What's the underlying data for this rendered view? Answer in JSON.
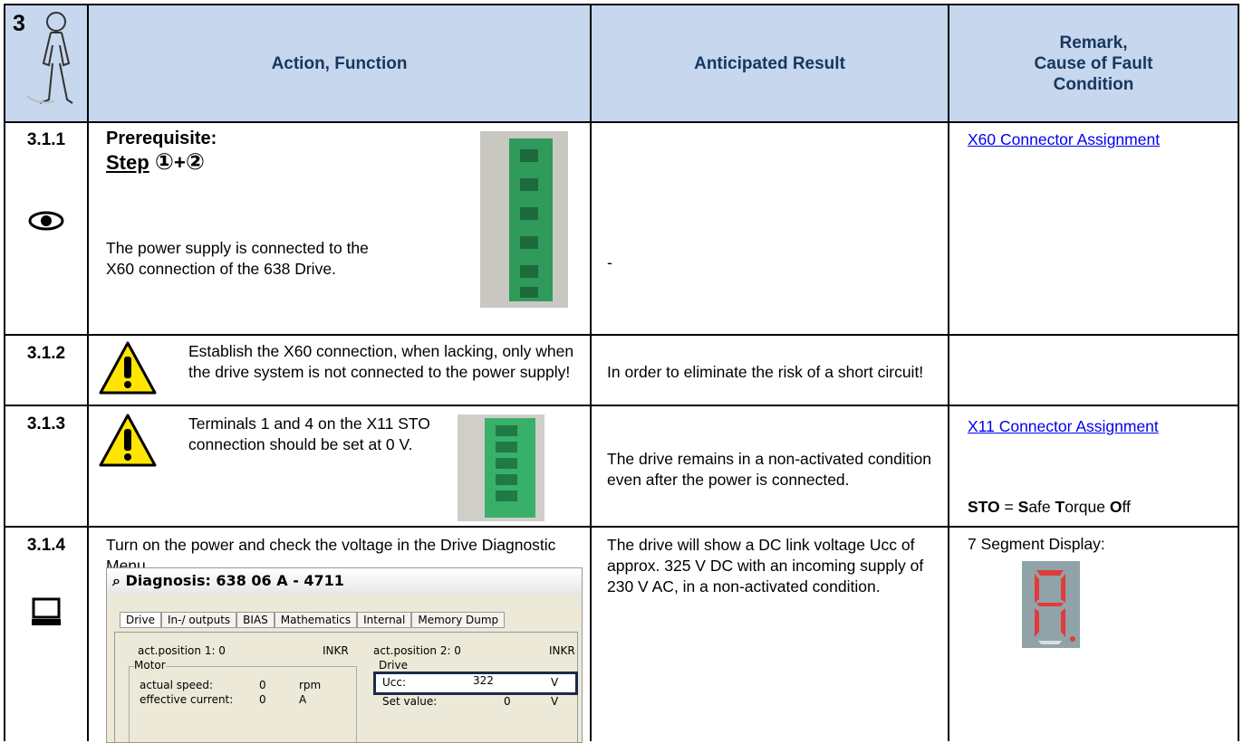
{
  "header": {
    "step": "3",
    "columns": [
      [
        "Action, Function"
      ],
      [
        "Anticipated Result"
      ],
      [
        "Remark,",
        "Cause of Fault",
        "Condition"
      ]
    ]
  },
  "rows": [
    {
      "id": "3.1.1",
      "action": {
        "heading": "Prerequisite:",
        "step_label": "Step",
        "step_first": "①",
        "step_plus": "+",
        "step_second": "②",
        "text": "The power supply is connected to the X60 connection of the 638 Drive."
      },
      "result": "-",
      "remark_link": "X60 Connector Assignment"
    },
    {
      "id": "3.1.2",
      "action": {
        "text": "Establish the X60 connection, when lacking, only when the drive system is not connected to the power supply!"
      },
      "result": "In order to eliminate the risk of a short circuit!"
    },
    {
      "id": "3.1.3",
      "action": {
        "text": "Terminals 1 and 4 on the X11 STO connection should be set at 0 V."
      },
      "result": "The drive remains in a non-activated condition even after the power is connected.",
      "remark_link": "X11 Connector Assignment",
      "remark_note": [
        {
          "text": "STO",
          "bold": true
        },
        {
          "text": " = ",
          "bold": false
        },
        {
          "text": "S",
          "bold": true
        },
        {
          "text": "afe ",
          "bold": false
        },
        {
          "text": "T",
          "bold": true
        },
        {
          "text": "orque ",
          "bold": false
        },
        {
          "text": "O",
          "bold": true
        },
        {
          "text": "ff",
          "bold": false
        }
      ]
    },
    {
      "id": "3.1.4",
      "action": {
        "text": "Turn on the power and check the voltage in the Drive Diagnostic Menu.",
        "window": {
          "title": "Diagnosis: 638 06 A - 4711",
          "tabs": [
            "Drive",
            "In-/ outputs",
            "BIAS",
            "Mathematics",
            "Internal",
            "Memory Dump"
          ],
          "pos1": "act.position 1: 0",
          "unit1": "INKR",
          "pos2": "act.position 2: 0",
          "unit2": "INKR",
          "motor": "Motor",
          "speed_label": "actual speed:",
          "speed": "0",
          "speed_unit": "rpm",
          "current_label": "effective current:",
          "current": "0",
          "current_unit": "A",
          "drive": "Drive",
          "ucc_label": "Ucc:",
          "ucc": "322",
          "ucc_unit": "V",
          "set_label": "Set value:",
          "set": "0",
          "set_unit": "V"
        }
      },
      "result": "The drive will show a DC link voltage Ucc of approx. 325 V DC with an incoming supply of 230 V AC, in a non-activated condition.",
      "remark": "7 Segment Display:"
    }
  ]
}
